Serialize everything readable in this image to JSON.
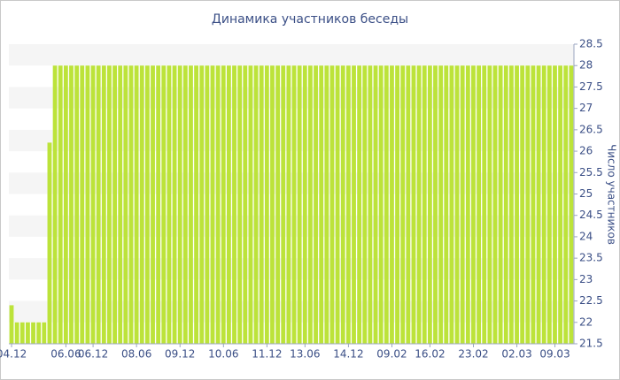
{
  "chart_data": {
    "type": "bar",
    "title": "Динамика участников беседы",
    "y_label": "Число участников",
    "color": "#bce33a",
    "grid": true,
    "ylim": [
      21.5,
      28.5
    ],
    "yticks": [
      21.5,
      22,
      22.5,
      23,
      23.5,
      24,
      24.5,
      25,
      25.5,
      26,
      26.5,
      27,
      27.5,
      28,
      28.5
    ],
    "categories": [
      "04.12",
      null,
      null,
      null,
      null,
      null,
      null,
      null,
      null,
      null,
      "06.06",
      null,
      null,
      null,
      null,
      "06.12",
      null,
      null,
      null,
      null,
      null,
      null,
      null,
      "08.06",
      null,
      null,
      null,
      null,
      null,
      null,
      null,
      "09.12",
      null,
      null,
      null,
      null,
      null,
      null,
      null,
      "10.06",
      null,
      null,
      null,
      null,
      null,
      null,
      null,
      "11.12",
      null,
      null,
      null,
      null,
      null,
      null,
      "13.06",
      null,
      null,
      null,
      null,
      null,
      null,
      null,
      "14.12",
      null,
      null,
      null,
      null,
      null,
      null,
      null,
      "09.02",
      null,
      null,
      null,
      null,
      null,
      null,
      "16.02",
      null,
      null,
      null,
      null,
      null,
      null,
      null,
      "23.02",
      null,
      null,
      null,
      null,
      null,
      null,
      null,
      "02.03",
      null,
      null,
      null,
      null,
      null,
      null,
      "09.03",
      null,
      null,
      null
    ],
    "values": [
      22.4,
      22,
      22,
      22,
      22,
      22,
      22,
      26.2,
      28,
      28,
      28,
      28,
      28,
      28,
      28,
      28,
      28,
      28,
      28,
      28,
      28,
      28,
      28,
      28,
      28,
      28,
      28,
      28,
      28,
      28,
      28,
      28,
      28,
      28,
      28,
      28,
      28,
      28,
      28,
      28,
      28,
      28,
      28,
      28,
      28,
      28,
      28,
      28,
      28,
      28,
      28,
      28,
      28,
      28,
      28,
      28,
      28,
      28,
      28,
      28,
      28,
      28,
      28,
      28,
      28,
      28,
      28,
      28,
      28,
      28,
      28,
      28,
      28,
      28,
      28,
      28,
      28,
      28,
      28,
      28,
      28,
      28,
      28,
      28,
      28,
      28,
      28,
      28,
      28,
      28,
      28,
      28,
      28,
      28,
      28,
      28,
      28,
      28,
      28,
      28,
      28,
      28,
      28,
      28
    ]
  }
}
